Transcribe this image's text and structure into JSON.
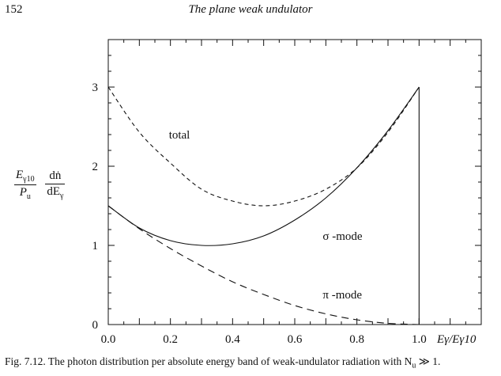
{
  "header": {
    "page_number": "152",
    "running_title": "The plane weak undulator"
  },
  "caption": {
    "text": "Fig. 7.12.  The photon distribution per absolute energy band of weak-undulator radiation with N",
    "sub": "u",
    "tail": " ≫ 1."
  },
  "y_axis_label": {
    "frac1_num_main": "E",
    "frac1_num_sub": "γ10",
    "frac1_den_main": "P",
    "frac1_den_sub": "u",
    "frac2_num": "dṅ",
    "frac2_den_main": "dE",
    "frac2_den_sub": "γ"
  },
  "chart_data": {
    "type": "line",
    "xlim": [
      0,
      1.2
    ],
    "ylim": [
      0,
      3.6
    ],
    "x_ticks": [
      0.0,
      0.2,
      0.4,
      0.6,
      0.8,
      1.0
    ],
    "x_tick_labels": [
      "0.0",
      "0.2",
      "0.4",
      "0.6",
      "0.8",
      "1.0"
    ],
    "y_ticks": [
      0,
      1,
      2,
      3
    ],
    "y_tick_labels": [
      "0",
      "1",
      "2",
      "3"
    ],
    "xlabel": "Eγ/Eγ10",
    "ylabel": "",
    "grid": false,
    "x": [
      0.0,
      0.1,
      0.2,
      0.3,
      0.4,
      0.5,
      0.6,
      0.7,
      0.8,
      0.9,
      1.0
    ],
    "series": [
      {
        "name": "total",
        "style": "dashed",
        "values": [
          3.0,
          2.43,
          2.04,
          1.71,
          1.56,
          1.5,
          1.56,
          1.71,
          1.98,
          2.43,
          3.0
        ]
      },
      {
        "name": "σ-mode",
        "style": "solid",
        "values": [
          1.5,
          1.22,
          1.06,
          1.0,
          1.02,
          1.12,
          1.32,
          1.6,
          1.98,
          2.45,
          3.0
        ]
      },
      {
        "name": "π-mode",
        "style": "long-dashed",
        "values": [
          1.5,
          1.21,
          0.96,
          0.74,
          0.54,
          0.38,
          0.24,
          0.135,
          0.06,
          0.015,
          0.0
        ]
      }
    ],
    "vertical_line": {
      "x": 1.0,
      "y0": 0,
      "y1": 3.0
    },
    "annotations": [
      {
        "text": "total",
        "x": 0.195,
        "y": 2.4
      },
      {
        "text": "σ -mode",
        "x": 0.69,
        "y": 1.12
      },
      {
        "text": "π -mode",
        "x": 0.69,
        "y": 0.38
      }
    ]
  }
}
